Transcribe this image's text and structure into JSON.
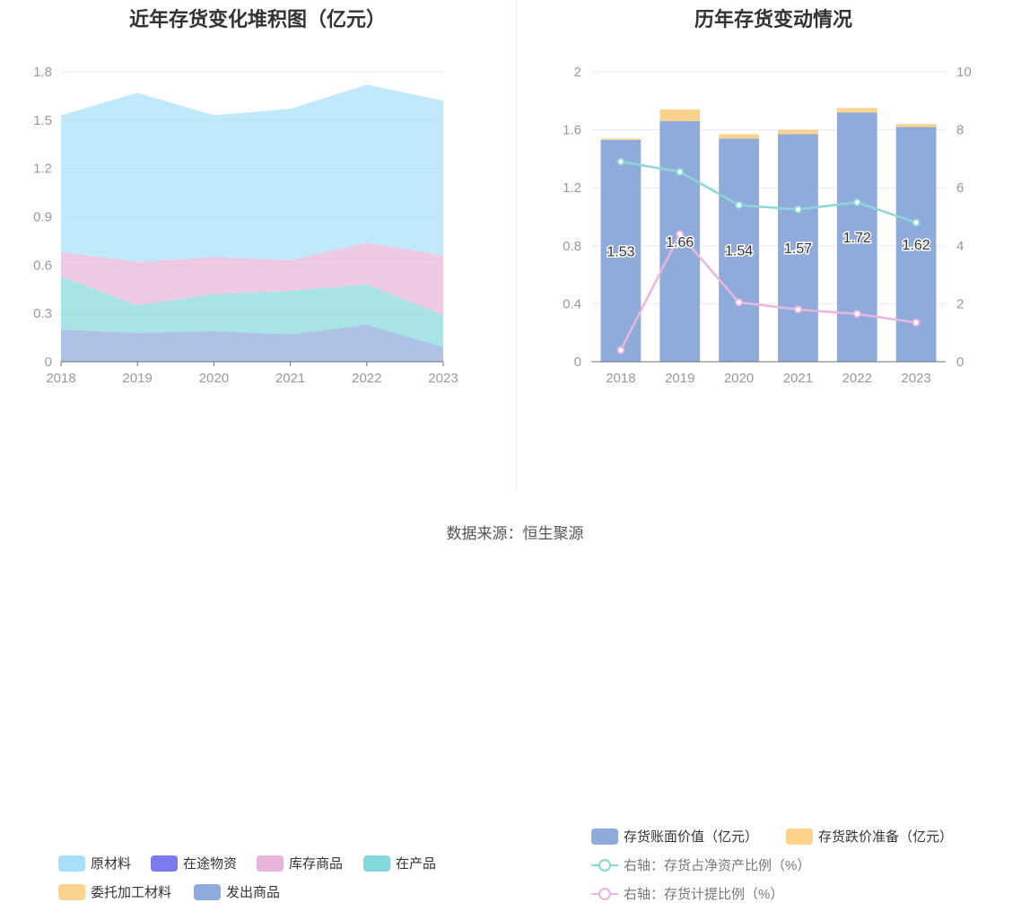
{
  "chart_data": [
    {
      "type": "area",
      "stacked": true,
      "title": "近年存货变化堆积图（亿元）",
      "categories": [
        "2018",
        "2019",
        "2020",
        "2021",
        "2022",
        "2023"
      ],
      "ylim": [
        0,
        1.8
      ],
      "yticks": [
        "0",
        "0.3",
        "0.6",
        "0.9",
        "1.2",
        "1.5",
        "1.8"
      ],
      "ytick_values": [
        0,
        0.3,
        0.6,
        0.9,
        1.2,
        1.5,
        1.8
      ],
      "grid": true,
      "legend_position": "bottom",
      "series": [
        {
          "name": "发出商品",
          "color": "#8fabdc",
          "values": [
            0.2,
            0.18,
            0.19,
            0.17,
            0.23,
            0.09
          ]
        },
        {
          "name": "委托加工材料",
          "color": "#fcd38c",
          "values": [
            0,
            0,
            0,
            0,
            0,
            0
          ]
        },
        {
          "name": "在产品",
          "color": "#86d9db",
          "values": [
            0.33,
            0.17,
            0.23,
            0.27,
            0.25,
            0.2
          ]
        },
        {
          "name": "在途物资",
          "color": "#7b7bf0",
          "values": [
            0,
            0,
            0,
            0,
            0,
            0
          ]
        },
        {
          "name": "库存商品",
          "color": "#e7b5d9",
          "values": [
            0.15,
            0.27,
            0.23,
            0.19,
            0.26,
            0.37
          ]
        },
        {
          "name": "原材料",
          "color": "#a8e0fb",
          "values": [
            0.85,
            1.05,
            0.88,
            0.94,
            0.98,
            0.96
          ]
        }
      ],
      "legend_order": [
        "原材料",
        "在途物资",
        "库存商品",
        "在产品",
        "委托加工材料",
        "发出商品"
      ]
    },
    {
      "type": "bar",
      "stacked": true,
      "title": "历年存货变动情况",
      "categories": [
        "2018",
        "2019",
        "2020",
        "2021",
        "2022",
        "2023"
      ],
      "ylim": [
        0,
        2
      ],
      "yticks": [
        "0",
        "0.4",
        "0.8",
        "1.2",
        "1.6",
        "2"
      ],
      "ytick_values": [
        0,
        0.4,
        0.8,
        1.2,
        1.6,
        2
      ],
      "y2lim": [
        0,
        10
      ],
      "y2ticks": [
        "0",
        "2",
        "4",
        "6",
        "8",
        "10"
      ],
      "y2tick_values": [
        0,
        2,
        4,
        6,
        8,
        10
      ],
      "grid": true,
      "legend_position": "bottom",
      "bars": [
        {
          "name": "存货账面价值（亿元）",
          "color": "#8fabdc",
          "values": [
            1.53,
            1.66,
            1.54,
            1.57,
            1.72,
            1.62
          ],
          "labels": [
            "1.53",
            "1.66",
            "1.54",
            "1.57",
            "1.72",
            "1.62"
          ]
        },
        {
          "name": "存货跌价准备（亿元）",
          "color": "#fcd38c",
          "values": [
            0.01,
            0.08,
            0.03,
            0.03,
            0.03,
            0.02
          ]
        }
      ],
      "lines": [
        {
          "name": "右轴：存货占净资产比例（%）",
          "color": "#8dd6d8",
          "values": [
            6.9,
            6.55,
            5.4,
            5.25,
            5.5,
            4.8
          ]
        },
        {
          "name": "右轴：存货计提比例（%）",
          "color": "#e9b7dd",
          "values": [
            0.4,
            4.4,
            2.05,
            1.8,
            1.65,
            1.35
          ]
        }
      ]
    }
  ],
  "source": "数据来源：恒生聚源"
}
